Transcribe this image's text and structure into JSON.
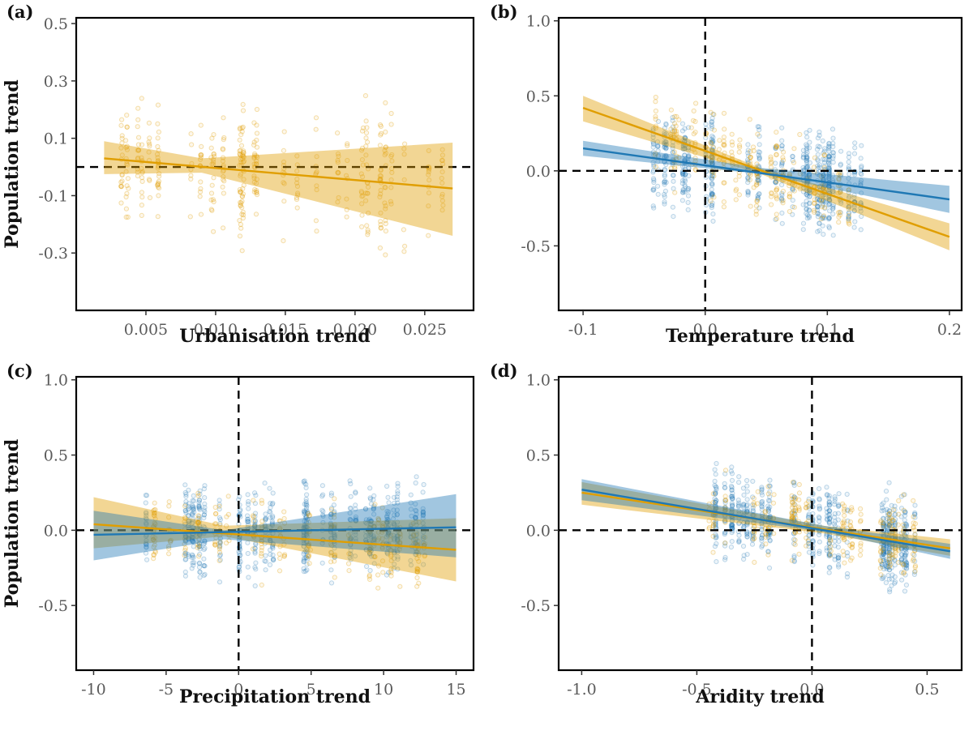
{
  "figure": {
    "y_axis_label": "Population trend",
    "colors": {
      "orange": "#E09E00",
      "blue": "#1F78B4",
      "axis": "#000000",
      "reference_line": "#000000"
    }
  },
  "chart_data": [
    {
      "panel": "(a)",
      "type": "scatter",
      "xlabel": "Urbanisation trend",
      "ylabel": "Population trend",
      "xlim": [
        0.0,
        0.0285
      ],
      "ylim": [
        -0.5,
        0.52
      ],
      "xticks": [
        0.005,
        0.01,
        0.015,
        0.02,
        0.025
      ],
      "xtick_labels": [
        "0.005",
        "0.010",
        "0.015",
        "0.020",
        "0.025"
      ],
      "yticks": [
        -0.3,
        -0.1,
        0.1,
        0.3,
        0.5
      ],
      "ytick_labels": [
        "-0.3",
        "-0.1",
        "0.1",
        "0.3",
        "0.5"
      ],
      "reference_lines": {
        "h": 0.0,
        "v": null
      },
      "series": [
        {
          "name": "orange",
          "color": "#E09E00",
          "fit": {
            "x": [
              0.002,
              0.027
            ],
            "y": [
              0.03,
              -0.075
            ]
          },
          "band": {
            "x": [
              0.002,
              0.009,
              0.027
            ],
            "lower": [
              -0.025,
              -0.02,
              -0.24
            ],
            "upper": [
              0.09,
              0.03,
              0.085
            ]
          },
          "points": {
            "x_range": [
              0.002,
              0.027
            ],
            "y_spread": 0.13,
            "n": 420,
            "seed": 11
          }
        }
      ]
    },
    {
      "panel": "(b)",
      "type": "scatter",
      "xlabel": "Temperature trend",
      "ylabel": "",
      "xlim": [
        -0.12,
        0.21
      ],
      "ylim": [
        -0.93,
        1.02
      ],
      "xticks": [
        -0.1,
        0.0,
        0.1,
        0.2
      ],
      "xtick_labels": [
        "-0.1",
        "0.0",
        "0.1",
        "0.2"
      ],
      "yticks": [
        -0.5,
        0.0,
        0.5,
        1.0
      ],
      "ytick_labels": [
        "-0.5",
        "0.0",
        "0.5",
        "1.0"
      ],
      "reference_lines": {
        "h": 0.0,
        "v": 0.0
      },
      "series": [
        {
          "name": "orange",
          "color": "#E09E00",
          "fit": {
            "x": [
              -0.1,
              0.2
            ],
            "y": [
              0.42,
              -0.44
            ]
          },
          "band": {
            "x": [
              -0.1,
              0.045,
              0.2
            ],
            "lower": [
              0.33,
              -0.02,
              -0.53
            ],
            "upper": [
              0.5,
              0.02,
              -0.35
            ]
          },
          "points": {
            "x_range": [
              -0.05,
              0.13
            ],
            "y_spread": 0.16,
            "n": 280,
            "seed": 21
          }
        },
        {
          "name": "blue",
          "color": "#1F78B4",
          "fit": {
            "x": [
              -0.1,
              0.2
            ],
            "y": [
              0.15,
              -0.19
            ]
          },
          "band": {
            "x": [
              -0.1,
              0.045,
              0.2
            ],
            "lower": [
              0.1,
              -0.02,
              -0.28
            ],
            "upper": [
              0.2,
              0.02,
              -0.1
            ]
          },
          "points": {
            "x_range": [
              -0.05,
              0.13
            ],
            "y_spread": 0.18,
            "n": 700,
            "seed": 22
          }
        }
      ]
    },
    {
      "panel": "(c)",
      "type": "scatter",
      "xlabel": "Precipitation trend",
      "ylabel": "Population trend",
      "xlim": [
        -11.2,
        16.2
      ],
      "ylim": [
        -0.93,
        1.02
      ],
      "xticks": [
        -10,
        -5,
        0,
        5,
        10,
        15
      ],
      "xtick_labels": [
        "-10",
        "-5",
        "0",
        "5",
        "10",
        "15"
      ],
      "yticks": [
        -0.5,
        0.0,
        0.5,
        1.0
      ],
      "ytick_labels": [
        "-0.5",
        "0.0",
        "0.5",
        "1.0"
      ],
      "reference_lines": {
        "h": 0.0,
        "v": 0.0
      },
      "series": [
        {
          "name": "orange",
          "color": "#E09E00",
          "fit": {
            "x": [
              -10,
              15
            ],
            "y": [
              0.04,
              -0.13
            ]
          },
          "band": {
            "x": [
              -10,
              -1,
              15
            ],
            "lower": [
              -0.12,
              -0.04,
              -0.34
            ],
            "upper": [
              0.22,
              0.03,
              0.08
            ]
          },
          "points": {
            "x_range": [
              -7,
              13
            ],
            "y_spread": 0.15,
            "n": 280,
            "seed": 31
          }
        },
        {
          "name": "blue",
          "color": "#1F78B4",
          "fit": {
            "x": [
              -10,
              15
            ],
            "y": [
              -0.03,
              0.02
            ]
          },
          "band": {
            "x": [
              -10,
              -1,
              15
            ],
            "lower": [
              -0.2,
              -0.06,
              -0.18
            ],
            "upper": [
              0.13,
              0.0,
              0.24
            ]
          },
          "points": {
            "x_range": [
              -7,
              13
            ],
            "y_spread": 0.17,
            "n": 700,
            "seed": 32
          }
        }
      ]
    },
    {
      "panel": "(d)",
      "type": "scatter",
      "xlabel": "Aridity trend",
      "ylabel": "",
      "xlim": [
        -1.1,
        0.65
      ],
      "ylim": [
        -0.93,
        1.02
      ],
      "xticks": [
        -1.0,
        -0.5,
        0.0,
        0.5
      ],
      "xtick_labels": [
        "-1.0",
        "-0.5",
        "0.0",
        "0.5"
      ],
      "yticks": [
        -0.5,
        0.0,
        0.5,
        1.0
      ],
      "ytick_labels": [
        "-0.5",
        "0.0",
        "0.5",
        "1.0"
      ],
      "reference_lines": {
        "h": 0.0,
        "v": 0.0
      },
      "series": [
        {
          "name": "orange",
          "color": "#E09E00",
          "fit": {
            "x": [
              -1.0,
              0.6
            ],
            "y": [
              0.25,
              -0.12
            ]
          },
          "band": {
            "x": [
              -1.0,
              0.05,
              0.6
            ],
            "lower": [
              0.17,
              -0.02,
              -0.17
            ],
            "upper": [
              0.32,
              0.03,
              -0.06
            ]
          },
          "points": {
            "x_range": [
              -0.45,
              0.45
            ],
            "y_spread": 0.14,
            "n": 280,
            "seed": 41
          }
        },
        {
          "name": "blue",
          "color": "#1F78B4",
          "fit": {
            "x": [
              -1.0,
              0.6
            ],
            "y": [
              0.27,
              -0.14
            ]
          },
          "band": {
            "x": [
              -1.0,
              0.05,
              0.6
            ],
            "lower": [
              0.2,
              -0.01,
              -0.19
            ],
            "upper": [
              0.34,
              0.03,
              -0.09
            ]
          },
          "points": {
            "x_range": [
              -0.45,
              0.45
            ],
            "y_spread": 0.17,
            "n": 700,
            "seed": 42
          }
        }
      ]
    }
  ]
}
